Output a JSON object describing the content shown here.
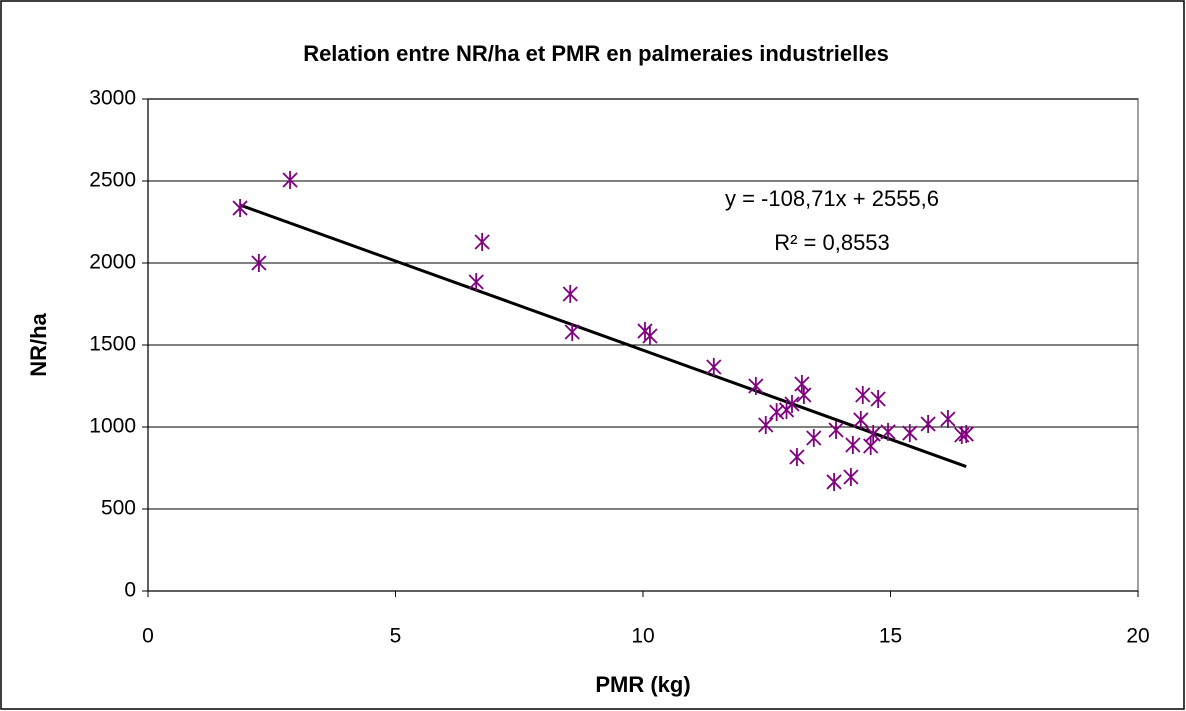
{
  "chart_data": {
    "type": "scatter",
    "title": "Relation entre NR/ha et PMR en palmeraies industrielles",
    "x_label": "PMR (kg)",
    "y_label": "NR/ha",
    "color": "#800080",
    "x": [
      1.86,
      2.87,
      2.24,
      6.63,
      6.75,
      8.53,
      8.57,
      10.04,
      10.14,
      11.43,
      12.28,
      12.48,
      12.7,
      12.9,
      13.01,
      13.11,
      13.21,
      13.25,
      13.45,
      13.86,
      13.9,
      14.2,
      14.24,
      14.4,
      14.44,
      14.6,
      14.65,
      14.75,
      14.95,
      15.39,
      15.76,
      16.16,
      16.44,
      16.53
    ],
    "values": [
      2335,
      2506,
      2000,
      1884,
      2128,
      1811,
      1579,
      1585,
      1555,
      1366,
      1250,
      1012,
      1091,
      1104,
      1140,
      817,
      1262,
      1195,
      933,
      665,
      982,
      695,
      890,
      1043,
      1195,
      884,
      957,
      1171,
      970,
      963,
      1018,
      1049,
      951,
      957
    ],
    "trendline": {
      "slope": -108.71,
      "intercept": 2555.6,
      "equation": "y = -108,71x + 2555,6",
      "r2": "R² = 0,8553"
    },
    "xlim": [
      0,
      20
    ],
    "xticks": [
      0,
      5,
      10,
      15,
      20
    ],
    "ylim": [
      0,
      3000
    ],
    "yticks": [
      0,
      500,
      1000,
      1500,
      2000,
      2500,
      3000
    ],
    "grid": true
  }
}
